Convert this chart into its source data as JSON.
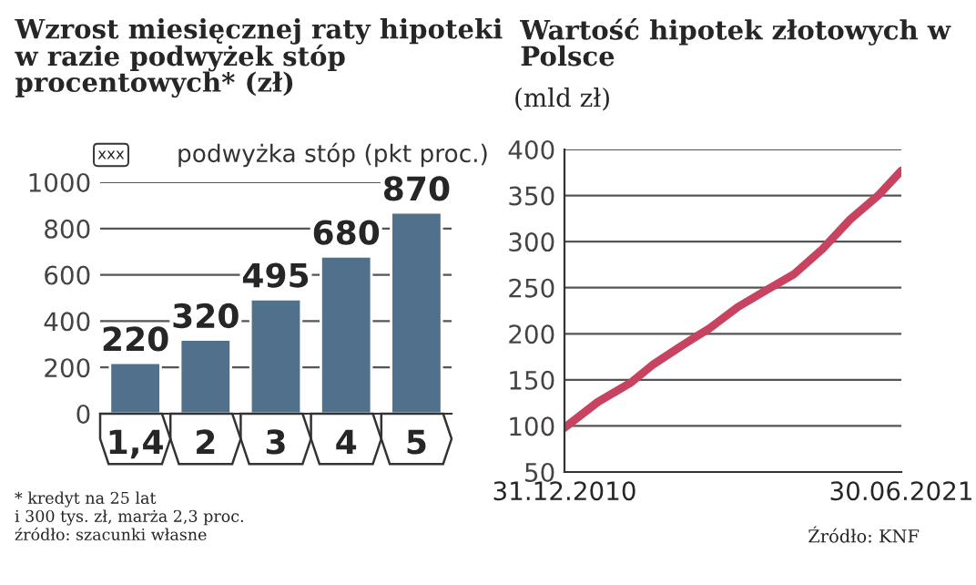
{
  "chart_data": [
    {
      "type": "bar",
      "title": "Wzrost miesięcznej raty hipoteki w razie podwyżek stóp procentowych* (zł)",
      "categories": [
        "1,4",
        "2",
        "3",
        "4",
        "5"
      ],
      "values": [
        220,
        320,
        495,
        680,
        870
      ],
      "color": "#50708c",
      "ylim": [
        0,
        1000
      ],
      "yticks": [
        0,
        200,
        400,
        600,
        800,
        1000
      ],
      "grid": "y",
      "data_labels": true,
      "annotations": [
        "xxx",
        "podwyżka stóp (pkt proc.)",
        "* kredyt na 25 lat",
        "i 300 tys. zł, marża 2,3 proc.",
        "źródło: szacunki własne"
      ]
    },
    {
      "type": "line",
      "title": "Wartość hipotek złotowych w Polsce",
      "subtitle": "(mld zł)",
      "x": [
        "2010-12-31",
        "2012-01-15",
        "2013-01-25",
        "2013-10-10",
        "2014-08-25",
        "2015-07-10",
        "2016-05-25",
        "2017-04-10",
        "2018-03-01",
        "2019-01-15",
        "2019-11-25",
        "2020-10-20",
        "2021-06-30"
      ],
      "values": [
        98,
        126,
        147,
        167,
        187,
        206,
        229,
        247,
        265,
        292,
        324,
        351,
        377
      ],
      "color": "#c8435f",
      "xlim": [
        "2010-12-31",
        "2021-06-30"
      ],
      "xticks": [
        {
          "value": "2010-12-31",
          "label": "31.12.2010"
        },
        {
          "value": "2021-06-30",
          "label": "30.06.2021"
        }
      ],
      "ylim": [
        50,
        400
      ],
      "yticks": [
        50,
        100,
        150,
        200,
        250,
        300,
        350,
        400
      ],
      "grid": "y",
      "line_style": "solid",
      "marker": "none",
      "annotations": [
        "Źródło: KNF"
      ]
    }
  ]
}
